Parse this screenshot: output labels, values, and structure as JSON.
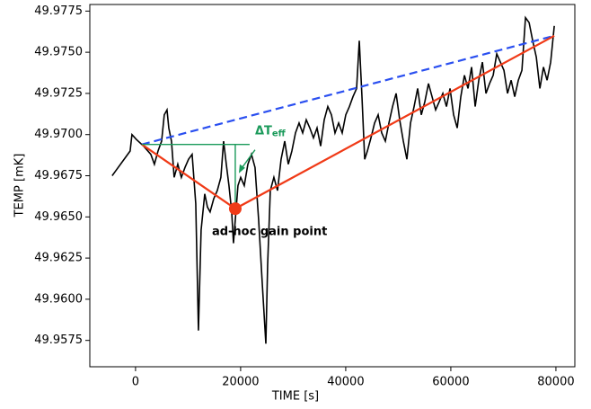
{
  "chart_data": {
    "type": "line",
    "xlabel": "TIME [s]",
    "ylabel": "TEMP [mK]",
    "xlim": [
      -8700,
      83600
    ],
    "xticks": [
      0,
      20000,
      40000,
      60000,
      80000
    ],
    "ylim": [
      49.9559,
      49.9779
    ],
    "yticks": [
      49.9575,
      {
        "value": 49.96,
        "label": "49.9600"
      },
      49.9625,
      {
        "value": 49.965,
        "label": "49.9650"
      },
      49.9675,
      {
        "value": 49.97,
        "label": "49.9700"
      },
      49.9725,
      {
        "value": 49.975,
        "label": "49.9750"
      },
      49.9775
    ],
    "grid": false,
    "series": [
      {
        "color": "#000000",
        "dashed": false,
        "x": [
          -4450,
          -1030,
          -680,
          170,
          1540,
          2910,
          3590,
          4280,
          4960,
          5470,
          5990,
          6330,
          6840,
          7350,
          8040,
          8720,
          9410,
          10090,
          10770,
          11460,
          11970,
          12480,
          13170,
          13680,
          14190,
          14880,
          15560,
          16240,
          16760,
          17270,
          17780,
          18300,
          18640,
          18980,
          19490,
          20010,
          20690,
          21380,
          22060,
          22740,
          23430,
          24110,
          24800,
          25140,
          25650,
          26330,
          27020,
          27700,
          28390,
          29070,
          29750,
          30440,
          31120,
          31810,
          32490,
          33170,
          33860,
          34540,
          35230,
          35910,
          36590,
          37280,
          37960,
          38650,
          39330,
          40010,
          40700,
          41380,
          42070,
          42580,
          43090,
          43610,
          44120,
          44800,
          45490,
          46170,
          46850,
          47540,
          48220,
          48910,
          49590,
          50270,
          50960,
          51640,
          52330,
          53010,
          53690,
          54380,
          55060,
          55750,
          56430,
          57110,
          57800,
          58480,
          59170,
          59850,
          60530,
          61220,
          61900,
          62590,
          63270,
          63950,
          64640,
          65320,
          66010,
          66690,
          67370,
          68060,
          68740,
          69430,
          70110,
          70790,
          71480,
          72160,
          72850,
          73530,
          74210,
          74900,
          75580,
          76270,
          76950,
          77630,
          78320,
          79000,
          79690
        ],
        "values": [
          49.9675,
          49.969,
          49.97,
          49.9697,
          49.9693,
          49.9688,
          49.9682,
          49.969,
          49.9696,
          49.9712,
          49.9715,
          49.9704,
          49.9696,
          49.9674,
          49.9682,
          49.9674,
          49.968,
          49.9685,
          49.9688,
          49.9658,
          49.9581,
          49.9642,
          49.9664,
          49.9656,
          49.9653,
          49.9661,
          49.9666,
          49.9674,
          49.9696,
          49.9682,
          49.9669,
          49.9653,
          49.9634,
          49.9648,
          49.9669,
          49.9674,
          49.9669,
          49.9682,
          49.9688,
          49.968,
          49.9648,
          49.961,
          49.9573,
          49.9621,
          49.9666,
          49.9674,
          49.9666,
          49.9685,
          49.9696,
          49.9682,
          49.969,
          49.9701,
          49.9707,
          49.9701,
          49.9709,
          49.9704,
          49.9698,
          49.9704,
          49.9693,
          49.9709,
          49.9717,
          49.9712,
          49.9701,
          49.9707,
          49.9701,
          49.9712,
          49.9717,
          49.9723,
          49.9728,
          49.9757,
          49.9723,
          49.9685,
          49.969,
          49.9698,
          49.9707,
          49.9712,
          49.9701,
          49.9696,
          49.9707,
          49.9717,
          49.9725,
          49.9709,
          49.9696,
          49.9685,
          49.9707,
          49.9717,
          49.9728,
          49.9712,
          49.972,
          49.9731,
          49.9723,
          49.9715,
          49.972,
          49.9725,
          49.9717,
          49.9728,
          49.9712,
          49.9704,
          49.9723,
          49.9736,
          49.9728,
          49.9741,
          49.9717,
          49.9733,
          49.9744,
          49.9725,
          49.9731,
          49.9736,
          49.9749,
          49.9744,
          49.9739,
          49.9725,
          49.9733,
          49.9723,
          49.9733,
          49.9739,
          49.9771,
          49.9768,
          49.9757,
          49.9747,
          49.9728,
          49.9741,
          49.9733,
          49.9744,
          49.9766
        ]
      },
      {
        "color": "#2a4ff0",
        "dashed": true,
        "x": [
          1200,
          79690
        ],
        "values": [
          49.9694,
          49.976
        ]
      },
      {
        "color": "#f03a17",
        "dashed": false,
        "x": [
          1200,
          18980,
          79690
        ],
        "values": [
          49.9694,
          49.9655,
          49.976
        ]
      }
    ],
    "point": {
      "x": 18980,
      "value": 49.9655,
      "color": "#f03a17"
    },
    "annotations": [
      {
        "text": "ΔT",
        "sub": "eff",
        "color": "#1a9a5a"
      },
      {
        "text": "ad-hoc gain point",
        "color": "#f03a17"
      }
    ]
  }
}
